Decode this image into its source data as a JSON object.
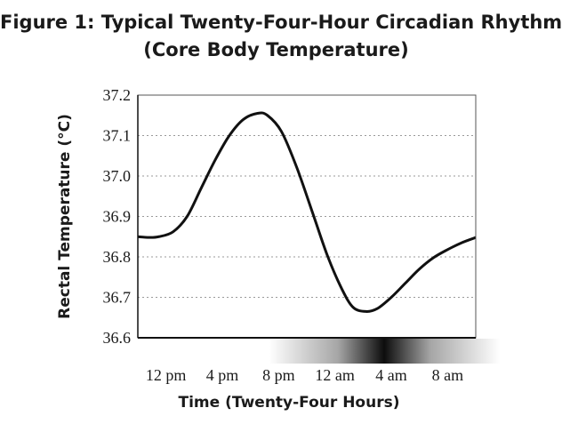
{
  "chart_data": {
    "type": "line",
    "title": "Figure 1: Typical Twenty-Four-Hour Circadian Rhythm",
    "subtitle": "(Core Body Temperature)",
    "xlabel": "Time (Twenty-Four Hours)",
    "ylabel": "Rectal Temperature (°C)",
    "ylim": [
      36.6,
      37.2
    ],
    "yticks": [
      "36.6",
      "36.7",
      "36.8",
      "36.9",
      "37.0",
      "37.1",
      "37.2"
    ],
    "xlim": [
      10,
      34
    ],
    "xticks": [
      {
        "label": "12 pm",
        "hour": 12
      },
      {
        "label": "4 pm",
        "hour": 16
      },
      {
        "label": "8 pm",
        "hour": 20
      },
      {
        "label": "12 am",
        "hour": 24
      },
      {
        "label": "4 am",
        "hour": 28
      },
      {
        "label": "8 am",
        "hour": 32
      }
    ],
    "grid": true,
    "series": [
      {
        "color": "#111111",
        "points": [
          [
            10,
            36.85
          ],
          [
            10.8,
            36.848
          ],
          [
            11.5,
            36.85
          ],
          [
            12.5,
            36.862
          ],
          [
            13.5,
            36.9
          ],
          [
            14.5,
            36.97
          ],
          [
            15.5,
            37.04
          ],
          [
            16.5,
            37.1
          ],
          [
            17.5,
            37.14
          ],
          [
            18.5,
            37.155
          ],
          [
            19.2,
            37.15
          ],
          [
            20.2,
            37.11
          ],
          [
            21.3,
            37.02
          ],
          [
            22.5,
            36.9
          ],
          [
            23.5,
            36.8
          ],
          [
            24.5,
            36.72
          ],
          [
            25.3,
            36.675
          ],
          [
            26.2,
            36.665
          ],
          [
            27,
            36.672
          ],
          [
            28,
            36.7
          ],
          [
            29,
            36.735
          ],
          [
            30,
            36.77
          ],
          [
            31,
            36.798
          ],
          [
            32,
            36.818
          ],
          [
            33,
            36.835
          ],
          [
            34,
            36.848
          ]
        ]
      }
    ],
    "night_shading": {
      "center_hour": 27.5,
      "color": "#000000"
    }
  }
}
